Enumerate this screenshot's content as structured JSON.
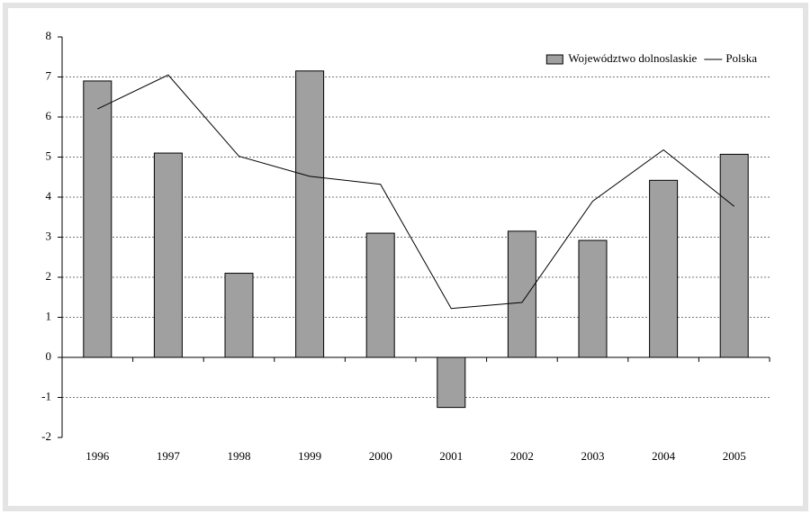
{
  "chart_data": {
    "type": "bar",
    "categories": [
      "1996",
      "1997",
      "1998",
      "1999",
      "2000",
      "2001",
      "2002",
      "2003",
      "2004",
      "2005"
    ],
    "series": [
      {
        "name": "Województwo dolnoslaskie",
        "type": "bar",
        "color": "#a0a0a0",
        "values": [
          6.9,
          5.1,
          2.1,
          7.15,
          3.1,
          -1.25,
          3.15,
          2.92,
          4.42,
          5.07
        ]
      },
      {
        "name": "Polska",
        "type": "line",
        "color": "#000000",
        "values": [
          6.2,
          7.05,
          5.02,
          4.52,
          4.32,
          1.22,
          1.37,
          3.9,
          5.18,
          3.77
        ]
      }
    ],
    "ylim": [
      -2,
      8
    ],
    "yticks": [
      -2,
      -1,
      0,
      1,
      2,
      3,
      4,
      5,
      6,
      7,
      8
    ],
    "grid": true,
    "legend": "upper right"
  }
}
